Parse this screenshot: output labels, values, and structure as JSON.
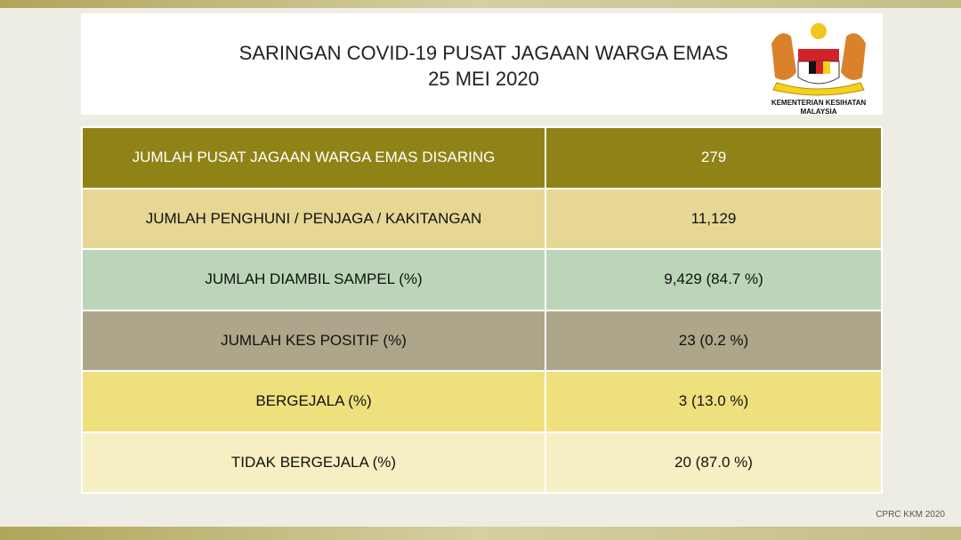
{
  "title_line1": "SARINGAN COVID-19 PUSAT JAGAAN WARGA EMAS",
  "title_line2": "25 MEI 2020",
  "logo": {
    "line1": "KEMENTERIAN KESIHATAN",
    "line2": "MALAYSIA"
  },
  "rows": [
    {
      "label": "JUMLAH PUSAT JAGAAN WARGA EMAS DISARING",
      "value": "279"
    },
    {
      "label": "JUMLAH PENGHUNI / PENJAGA /  KAKITANGAN",
      "value": "11,129"
    },
    {
      "label": "JUMLAH DIAMBIL SAMPEL (%)",
      "value": "9,429 (84.7 %)"
    },
    {
      "label": "JUMLAH KES POSITIF (%)",
      "value": "23 (0.2 %)"
    },
    {
      "label": "BERGEJALA (%)",
      "value": "3 (13.0 %)"
    },
    {
      "label": "TIDAK BERGEJALA (%)",
      "value": "20 (87.0 %)"
    }
  ],
  "footer": "CPRC KKM 2020"
}
